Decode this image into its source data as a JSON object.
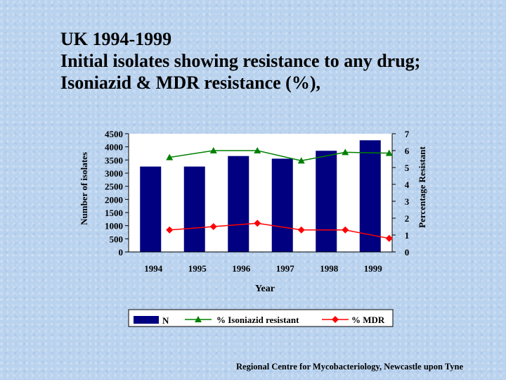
{
  "title": {
    "line1": "UK 1994-1999",
    "line2": "Initial isolates showing resistance to any drug;",
    "line3": "Isoniazid & MDR resistance (%),"
  },
  "footer": "Regional Centre for Mycobacteriology, Newcastle upon Tyne",
  "colors": {
    "bar": "#000080",
    "isoniazid": "#008000",
    "mdr": "#ff0000",
    "plot_bg": "#ffffff"
  },
  "chart_data": {
    "type": "bar",
    "categories": [
      "1994",
      "1995",
      "1996",
      "1997",
      "1998",
      "1999"
    ],
    "xlabel": "Year",
    "ylabel": "Number of isolates",
    "y2label": "Percentage Resistant",
    "ylim": [
      0,
      4500
    ],
    "y2lim": [
      0,
      7
    ],
    "yticks": [
      "4500",
      "4000",
      "3500",
      "3000",
      "2500",
      "2000",
      "1500",
      "1000",
      "500",
      "0"
    ],
    "y2ticks": [
      "7",
      "6",
      "5",
      "4",
      "3",
      "2",
      "1",
      "0"
    ],
    "grid": false,
    "legend_position": "bottom",
    "series": [
      {
        "name": "N",
        "kind": "bar",
        "axis": "left",
        "values": [
          3250,
          3250,
          3650,
          3550,
          3850,
          4250
        ]
      },
      {
        "name": "% Isoniazid resistant",
        "kind": "line",
        "axis": "right",
        "marker": "triangle",
        "values": [
          5.6,
          6.0,
          6.0,
          5.4,
          5.9,
          5.85
        ]
      },
      {
        "name": "% MDR",
        "kind": "line",
        "axis": "right",
        "marker": "diamond",
        "values": [
          1.3,
          1.5,
          1.7,
          1.3,
          1.3,
          0.8
        ]
      }
    ]
  }
}
